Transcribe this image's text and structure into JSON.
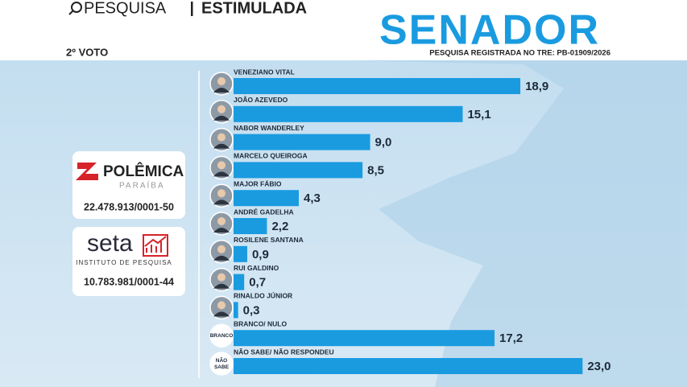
{
  "header": {
    "search_left": "PESQUISA",
    "search_right": "ESTIMULADA",
    "registration": "PESQUISA REGISTRADA NO TRE: PB-01909/2026"
  },
  "sponsors": [
    {
      "name": "POLÊMICA",
      "region": "PARAÍBA",
      "id": "22.478.913/0001-50"
    },
    {
      "name": "seta",
      "tagline": "INSTITUTO DE PESQUISA",
      "id": "10.783.981/0001-44"
    }
  ],
  "chart_data": {
    "type": "bar",
    "orientation": "horizontal",
    "title": "SENADOR",
    "subtitle": "2º VOTO",
    "color": "#1a9be0",
    "categories": [
      "VENEZIANO VITAL",
      "JOÃO AZEVEDO",
      "NABOR WANDERLEY",
      "MARCELO QUEIROGA",
      "MAJOR FÁBIO",
      "ANDRÉ GADELHA",
      "ROSILENE SANTANA",
      "RUI GALDINO",
      "RINALDO JÚNIOR",
      "BRANCO/ NULO",
      "NÃO SABE/ NÃO RESPONDEU"
    ],
    "category_badges": [
      null,
      null,
      null,
      null,
      null,
      null,
      null,
      null,
      null,
      [
        "BRANCO"
      ],
      [
        "NÃO",
        "SABE"
      ]
    ],
    "values": [
      18.9,
      15.1,
      9.0,
      8.5,
      4.3,
      2.2,
      0.9,
      0.7,
      0.3,
      17.2,
      23.0
    ],
    "value_labels": [
      "18,9",
      "15,1",
      "9,0",
      "8,5",
      "4,3",
      "2,2",
      "0,9",
      "0,7",
      "0,3",
      "17,2",
      "23,0"
    ]
  }
}
